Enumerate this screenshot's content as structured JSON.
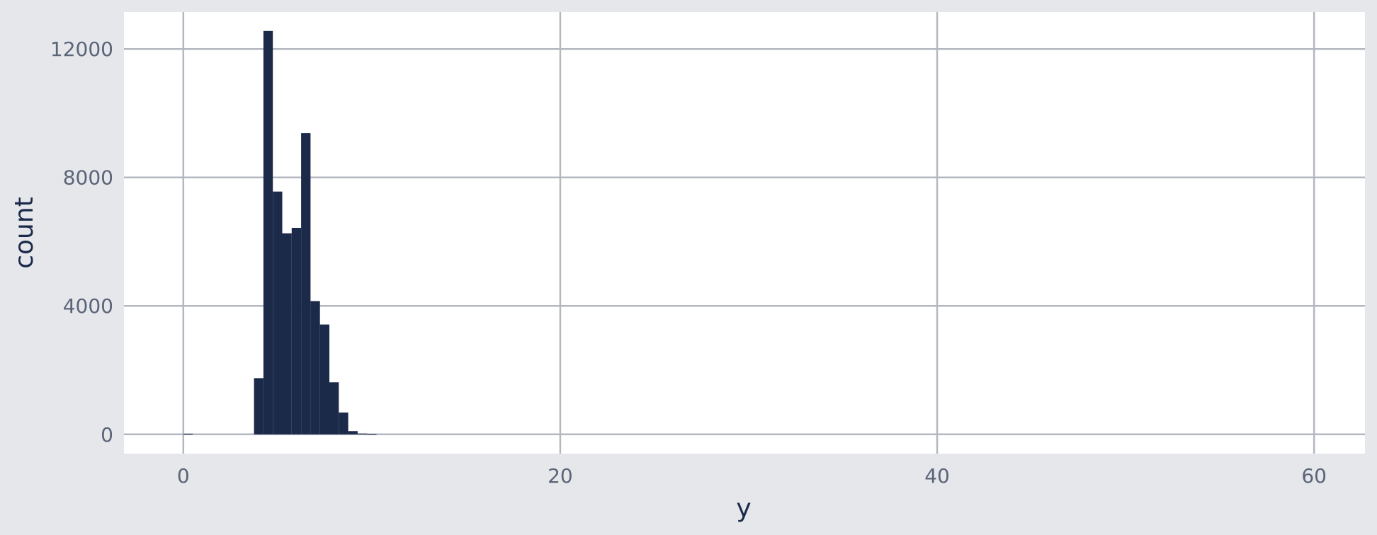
{
  "chart_data": {
    "type": "bar",
    "title": "",
    "xlabel": "y",
    "ylabel": "count",
    "xlim": [
      -3.15,
      62.7
    ],
    "ylim": [
      -600,
      13150
    ],
    "x_ticks": [
      0,
      20,
      40,
      60
    ],
    "y_ticks": [
      0,
      4000,
      8000,
      12000
    ],
    "grid": true,
    "bin_width": 0.5,
    "bins": [
      {
        "x0": 0.0,
        "x1": 0.5,
        "count": 20
      },
      {
        "x0": 3.75,
        "x1": 4.25,
        "count": 1750
      },
      {
        "x0": 4.25,
        "x1": 4.75,
        "count": 12560
      },
      {
        "x0": 4.75,
        "x1": 5.25,
        "count": 7560
      },
      {
        "x0": 5.25,
        "x1": 5.75,
        "count": 6260
      },
      {
        "x0": 5.75,
        "x1": 6.25,
        "count": 6430
      },
      {
        "x0": 6.25,
        "x1": 6.75,
        "count": 9380
      },
      {
        "x0": 6.75,
        "x1": 7.25,
        "count": 4150
      },
      {
        "x0": 7.25,
        "x1": 7.75,
        "count": 3420
      },
      {
        "x0": 7.75,
        "x1": 8.25,
        "count": 1620
      },
      {
        "x0": 8.25,
        "x1": 8.75,
        "count": 680
      },
      {
        "x0": 8.75,
        "x1": 9.25,
        "count": 100
      },
      {
        "x0": 9.25,
        "x1": 9.75,
        "count": 25
      },
      {
        "x0": 9.75,
        "x1": 10.25,
        "count": 10
      }
    ],
    "colors": {
      "bar": "#1c2a4a",
      "grid": "#b4b7c0",
      "panel": "#ffffff",
      "background": "#e5e7eb"
    }
  }
}
